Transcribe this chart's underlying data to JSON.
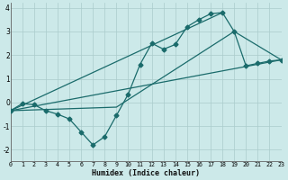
{
  "xlabel": "Humidex (Indice chaleur)",
  "xlim": [
    0,
    23
  ],
  "ylim": [
    -2.5,
    4.2
  ],
  "yticks": [
    -2,
    -1,
    0,
    1,
    2,
    3,
    4
  ],
  "xticks": [
    0,
    1,
    2,
    3,
    4,
    5,
    6,
    7,
    8,
    9,
    10,
    11,
    12,
    13,
    14,
    15,
    16,
    17,
    18,
    19,
    20,
    21,
    22,
    23
  ],
  "bg_color": "#cce9e9",
  "line_color": "#1a6b6b",
  "grid_color": "#aacccc",
  "series_main": {
    "x": [
      0,
      1,
      2,
      3,
      4,
      5,
      6,
      7,
      8,
      9,
      10,
      11,
      12,
      13,
      14,
      15,
      16,
      17,
      18,
      19,
      20,
      21,
      22,
      23
    ],
    "y": [
      -0.35,
      -0.05,
      -0.1,
      -0.35,
      -0.5,
      -0.7,
      -1.25,
      -1.8,
      -1.45,
      -0.55,
      0.35,
      1.6,
      2.5,
      2.25,
      2.45,
      3.2,
      3.5,
      3.75,
      3.8,
      3.0,
      1.55,
      1.65,
      1.75,
      1.8
    ]
  },
  "line1": {
    "x": [
      0,
      23
    ],
    "y": [
      -0.35,
      1.8
    ]
  },
  "line2": {
    "x": [
      0,
      18
    ],
    "y": [
      -0.35,
      3.8
    ]
  },
  "line3": {
    "x": [
      0,
      9,
      19,
      23
    ],
    "y": [
      -0.35,
      -0.2,
      3.0,
      1.8
    ]
  }
}
